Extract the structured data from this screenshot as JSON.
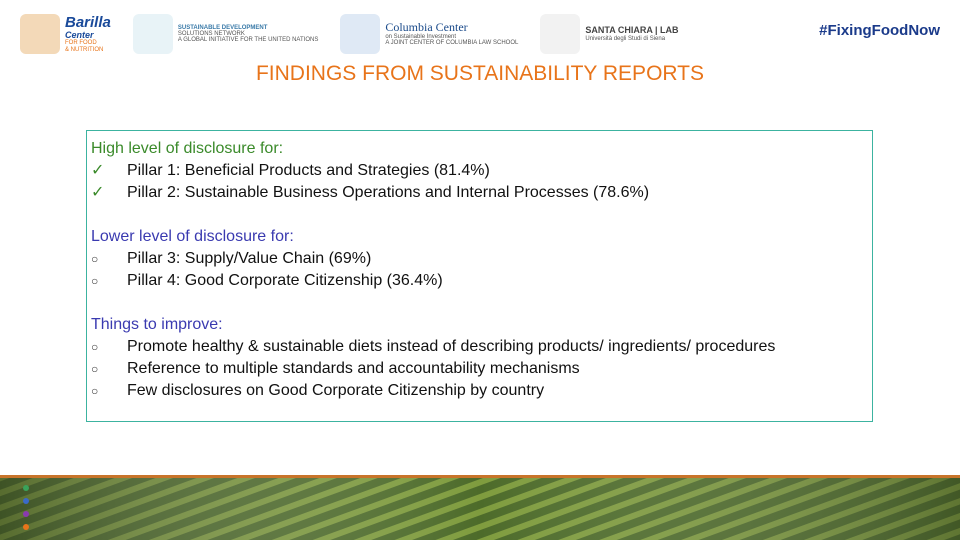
{
  "header": {
    "logos": [
      {
        "name": "Barilla",
        "lines": [
          "Center",
          "FOR FOOD",
          "& NUTRITION"
        ]
      },
      {
        "name": "SUSTAINABLE DEVELOPMENT",
        "lines": [
          "SOLUTIONS NETWORK",
          "A GLOBAL INITIATIVE FOR THE UNITED NATIONS"
        ]
      },
      {
        "name": "Columbia Center",
        "lines": [
          "on Sustainable Investment",
          "A JOINT CENTER OF COLUMBIA LAW SCHOOL"
        ]
      },
      {
        "name": "SANTA CHIARA | LAB",
        "lines": [
          "Università degli Studi di Siena"
        ]
      }
    ],
    "hashtag": "#FixingFoodNow"
  },
  "title": "FINDINGS FROM SUSTAINABILITY REPORTS",
  "sections": [
    {
      "heading": "High level of disclosure for:",
      "bullet": "✓",
      "items": [
        "Pillar 1: Beneficial Products and Strategies (81.4%)",
        "Pillar 2: Sustainable Business Operations and Internal Processes (78.6%)"
      ]
    },
    {
      "heading": "Lower level of disclosure for:",
      "bullet": "○",
      "items": [
        "Pillar 3: Supply/Value Chain (69%)",
        "Pillar 4: Good Corporate Citizenship (36.4%)"
      ]
    },
    {
      "heading": "Things to improve:",
      "bullet": "○",
      "items": [
        "Promote healthy & sustainable diets instead of describing products/ ingredients/ procedures",
        "Reference to multiple standards and accountability mechanisms",
        "Few disclosures on Good Corporate Citizenship by country"
      ]
    }
  ]
}
